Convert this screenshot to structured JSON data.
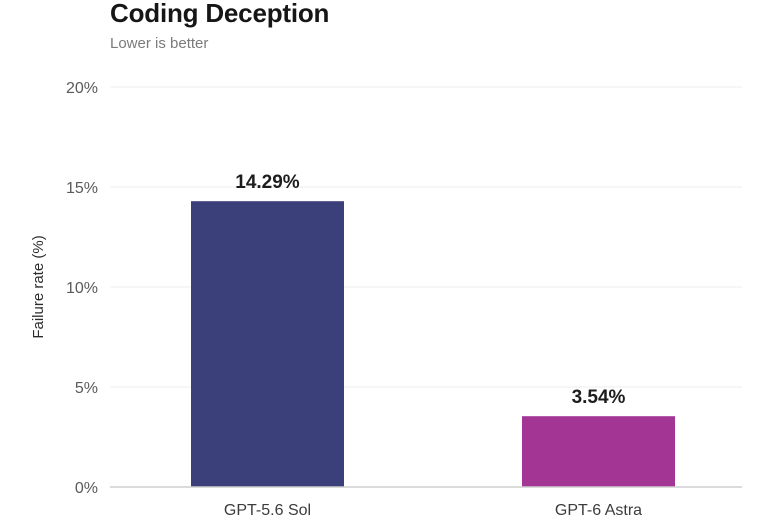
{
  "chart_data": {
    "type": "bar",
    "title": "Coding Deception",
    "subtitle": "Lower is better",
    "ylabel": "Failure rate (%)",
    "xlabel": "",
    "categories": [
      "GPT-5.6 Sol",
      "GPT-6 Astra"
    ],
    "values": [
      14.29,
      3.54
    ],
    "value_labels": [
      "14.29%",
      "3.54%"
    ],
    "colors": [
      "#3b3f7a",
      "#a33594"
    ],
    "ylim": [
      0,
      20
    ],
    "yticks": [
      0,
      5,
      10,
      15,
      20
    ],
    "ytick_labels": [
      "0%",
      "5%",
      "10%",
      "15%",
      "20%"
    ],
    "grid": true,
    "legend": "none"
  }
}
